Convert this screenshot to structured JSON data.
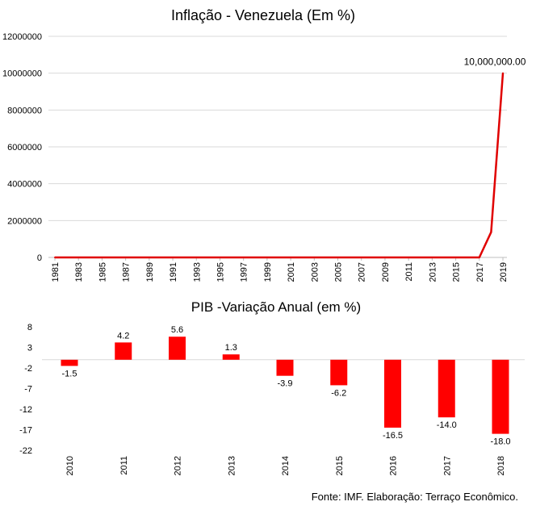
{
  "chart_data": [
    {
      "type": "line",
      "title": "Inflação - Venezuela (Em %)",
      "xlabel": "",
      "ylabel": "",
      "x": [
        1981,
        1982,
        1983,
        1984,
        1985,
        1986,
        1987,
        1988,
        1989,
        1990,
        1991,
        1992,
        1993,
        1994,
        1995,
        1996,
        1997,
        1998,
        1999,
        2000,
        2001,
        2002,
        2003,
        2004,
        2005,
        2006,
        2007,
        2008,
        2009,
        2010,
        2011,
        2012,
        2013,
        2014,
        2015,
        2016,
        2017,
        2018,
        2019
      ],
      "x_tick_labels": [
        "1981",
        "1983",
        "1985",
        "1987",
        "1989",
        "1991",
        "1993",
        "1995",
        "1997",
        "1999",
        "2001",
        "2003",
        "2005",
        "2007",
        "2009",
        "2011",
        "2013",
        "2015",
        "2017",
        "2019"
      ],
      "values": [
        16,
        10,
        6,
        12,
        11,
        11,
        28,
        30,
        84,
        41,
        34,
        31,
        38,
        61,
        60,
        100,
        50,
        36,
        24,
        16,
        12,
        22,
        31,
        22,
        16,
        14,
        19,
        31,
        27,
        28,
        26,
        21,
        41,
        62,
        122,
        255,
        438,
        1370000,
        10000000
      ],
      "y_tick_labels": [
        "0",
        "2000000",
        "4000000",
        "6000000",
        "8000000",
        "10000000",
        "12000000"
      ],
      "ylim": [
        0,
        12000000
      ],
      "grid": true,
      "data_labels": [
        {
          "index": 38,
          "text": "10,000,000.00"
        }
      ],
      "color": "#e00000"
    },
    {
      "type": "bar",
      "title": "PIB  -Variação Anual (em %)",
      "categories": [
        "2010",
        "2011",
        "2012",
        "2013",
        "2014",
        "2015",
        "2016",
        "2017",
        "2018"
      ],
      "values": [
        -1.5,
        4.2,
        5.6,
        1.3,
        -3.9,
        -6.2,
        -16.5,
        -14.0,
        -18.0
      ],
      "value_labels": [
        "-1.5",
        "4.2",
        "5.6",
        "1.3",
        "-3.9",
        "-6.2",
        "-16.5",
        "-14.0",
        "-18.0"
      ],
      "y_tick_labels": [
        "8",
        "3",
        "-2",
        "-7",
        "-12",
        "-17",
        "-22"
      ],
      "ylim": [
        -22,
        8
      ],
      "grid": false,
      "color": "#ff0000"
    }
  ],
  "footer": {
    "source": "Fonte: IMF.   Elaboração: Terraço Econômico."
  }
}
